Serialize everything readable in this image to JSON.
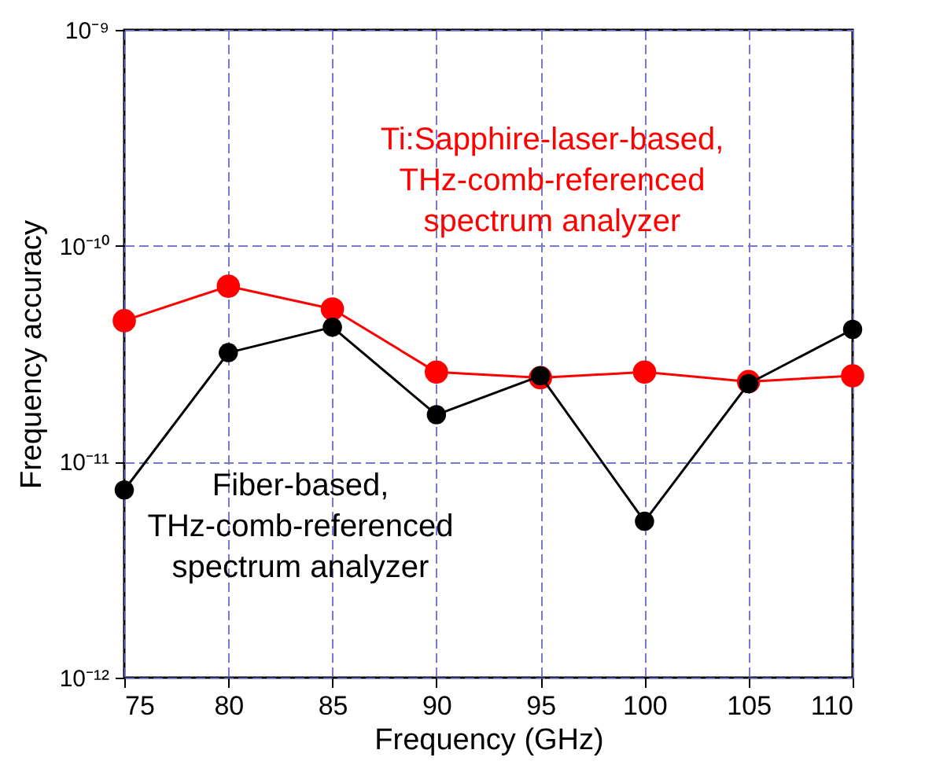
{
  "chart_data": {
    "type": "line",
    "xlabel": "Frequency (GHz)",
    "ylabel": "Frequency accuracy",
    "x": [
      75,
      80,
      85,
      90,
      95,
      100,
      105,
      110
    ],
    "series": [
      {
        "name": "Ti:Sapphire-laser-based,\nTHz-comb-referenced\nspectrum analyzer",
        "color": "#ff0000",
        "values": [
          4.5e-11,
          6.5e-11,
          5.1e-11,
          2.6e-11,
          2.45e-11,
          2.6e-11,
          2.35e-11,
          2.5e-11
        ]
      },
      {
        "name": "Fiber-based,\nTHz-comb-referenced\nspectrum analyzer",
        "color": "#000000",
        "values": [
          7.4e-12,
          3.2e-11,
          4.2e-11,
          1.65e-11,
          2.5e-11,
          5.3e-12,
          2.3e-11,
          4.1e-11
        ]
      }
    ],
    "xlim": [
      75,
      110
    ],
    "xticks": [
      75,
      80,
      85,
      90,
      95,
      100,
      105,
      110
    ],
    "ylim": [
      1e-12,
      1e-09
    ],
    "yticks": [
      {
        "value": 1e-12,
        "label": "10⁻¹²"
      },
      {
        "value": 1e-11,
        "label": "10⁻¹¹"
      },
      {
        "value": 1e-10,
        "label": "10⁻¹⁰"
      },
      {
        "value": 1e-09,
        "label": "10⁻⁹"
      }
    ],
    "log": "y",
    "grid": true,
    "marker": "circle",
    "line_style": "solid"
  }
}
